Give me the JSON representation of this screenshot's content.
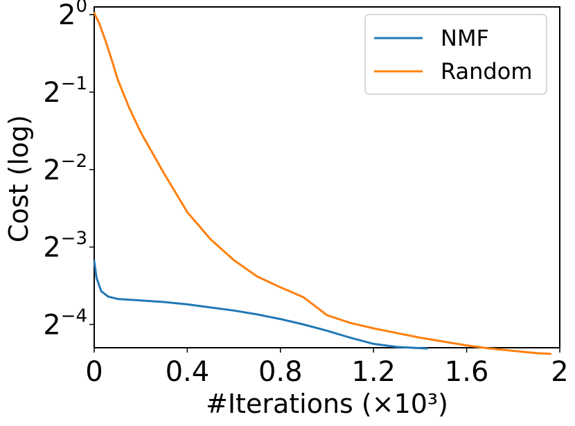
{
  "chart_data": {
    "type": "line",
    "xlabel": "#Iterations (×10³)",
    "ylabel": "Cost (log)",
    "xlim": [
      0,
      2
    ],
    "ylim_log2": [
      -4.3,
      0.1
    ],
    "xticks": [
      {
        "value": 0,
        "label": "0"
      },
      {
        "value": 0.4,
        "label": "0.4"
      },
      {
        "value": 0.8,
        "label": "0.8"
      },
      {
        "value": 1.2,
        "label": "1.2"
      },
      {
        "value": 1.6,
        "label": "1.6"
      },
      {
        "value": 2,
        "label": "2"
      }
    ],
    "yticks": [
      {
        "exp": 0,
        "base": "2",
        "sup": "0"
      },
      {
        "exp": -1,
        "base": "2",
        "sup": "−1"
      },
      {
        "exp": -2,
        "base": "2",
        "sup": "−2"
      },
      {
        "exp": -3,
        "base": "2",
        "sup": "−3"
      },
      {
        "exp": -4,
        "base": "2",
        "sup": "−4"
      }
    ],
    "y_scale": "log2",
    "grid": false,
    "legend_position": "top-right",
    "series": [
      {
        "name": "NMF",
        "color": "#1f77b4",
        "x": [
          0,
          0.01,
          0.03,
          0.06,
          0.1,
          0.2,
          0.3,
          0.4,
          0.5,
          0.6,
          0.7,
          0.8,
          0.9,
          1.0,
          1.1,
          1.2,
          1.3,
          1.43
        ],
        "y_log2": [
          -3.18,
          -3.4,
          -3.57,
          -3.64,
          -3.67,
          -3.69,
          -3.71,
          -3.74,
          -3.78,
          -3.82,
          -3.87,
          -3.93,
          -4.0,
          -4.08,
          -4.17,
          -4.25,
          -4.29,
          -4.31
        ]
      },
      {
        "name": "Random",
        "color": "#ff7f0e",
        "x": [
          0,
          0.02,
          0.05,
          0.08,
          0.1,
          0.15,
          0.2,
          0.3,
          0.4,
          0.5,
          0.6,
          0.7,
          0.8,
          0.9,
          1.0,
          1.1,
          1.2,
          1.3,
          1.4,
          1.5,
          1.6,
          1.7,
          1.8,
          1.9,
          1.96
        ],
        "y_log2": [
          0.02,
          -0.1,
          -0.35,
          -0.63,
          -0.83,
          -1.2,
          -1.52,
          -2.05,
          -2.55,
          -2.9,
          -3.17,
          -3.38,
          -3.52,
          -3.65,
          -3.88,
          -3.98,
          -4.05,
          -4.11,
          -4.17,
          -4.22,
          -4.27,
          -4.31,
          -4.34,
          -4.37,
          -4.38
        ]
      }
    ]
  }
}
